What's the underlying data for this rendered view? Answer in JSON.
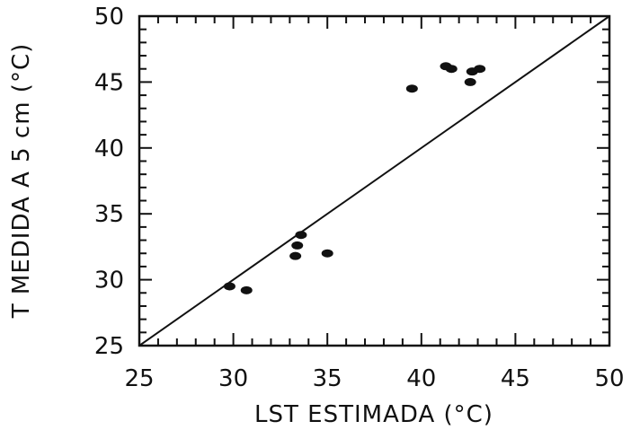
{
  "chart_data": {
    "type": "scatter",
    "xlabel": "LST ESTIMADA (°C)",
    "ylabel": "T MEDIDA A 5 cm (°C)",
    "xlim": [
      25,
      50
    ],
    "ylim": [
      25,
      50
    ],
    "xticks": [
      "25",
      "30",
      "35",
      "40",
      "45",
      "50"
    ],
    "yticks": [
      "25",
      "30",
      "35",
      "40",
      "45",
      "50"
    ],
    "grid": false,
    "reference_line": {
      "type": "1:1",
      "from": [
        25,
        25
      ],
      "to": [
        50,
        50
      ]
    },
    "points": [
      {
        "x": 29.8,
        "y": 29.5
      },
      {
        "x": 30.7,
        "y": 29.2
      },
      {
        "x": 33.3,
        "y": 31.8
      },
      {
        "x": 33.4,
        "y": 32.6
      },
      {
        "x": 33.6,
        "y": 33.4
      },
      {
        "x": 35.0,
        "y": 32.0
      },
      {
        "x": 39.5,
        "y": 44.5
      },
      {
        "x": 41.3,
        "y": 46.2
      },
      {
        "x": 41.6,
        "y": 46.0
      },
      {
        "x": 42.6,
        "y": 45.0
      },
      {
        "x": 42.7,
        "y": 45.8
      },
      {
        "x": 43.1,
        "y": 46.0
      }
    ],
    "marker_color": "#111111",
    "line_color": "#111111"
  }
}
